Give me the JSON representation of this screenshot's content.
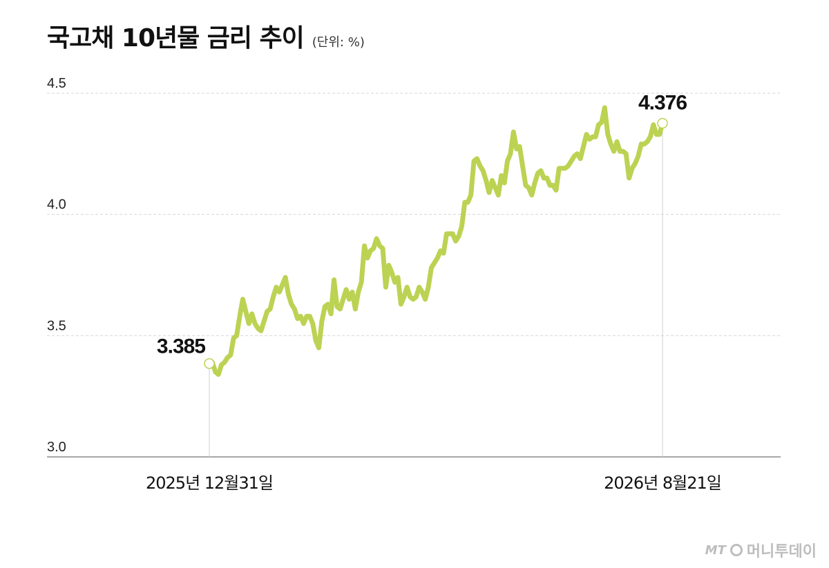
{
  "header": {
    "title": "국고채 10년물 금리 추이",
    "unit": "(단위: %)"
  },
  "logo": {
    "mark": "MT",
    "text": "머니투데이"
  },
  "colors": {
    "line": "#bcd253",
    "grid": "#d6d6d6",
    "axis": "#8a8a8a",
    "marker_fill": "#ffffff"
  },
  "chart_data": {
    "type": "line",
    "title": "국고채 10년물 금리 추이",
    "ylabel": "",
    "xlabel": "",
    "ylim": [
      3.0,
      4.5
    ],
    "yticks": [
      "4.5",
      "4.0",
      "3.5",
      "3.0"
    ],
    "grid": true,
    "start_label": "2025년 12월31일",
    "end_label": "2026년 8월21일",
    "start_value": "3.385",
    "end_value": "4.376",
    "values": [
      3.385,
      3.39,
      3.35,
      3.34,
      3.38,
      3.39,
      3.41,
      3.42,
      3.49,
      3.5,
      3.58,
      3.65,
      3.6,
      3.55,
      3.59,
      3.55,
      3.53,
      3.52,
      3.56,
      3.6,
      3.61,
      3.66,
      3.7,
      3.68,
      3.71,
      3.74,
      3.67,
      3.63,
      3.61,
      3.57,
      3.58,
      3.55,
      3.58,
      3.58,
      3.55,
      3.48,
      3.45,
      3.56,
      3.62,
      3.63,
      3.59,
      3.73,
      3.62,
      3.61,
      3.65,
      3.69,
      3.65,
      3.68,
      3.61,
      3.68,
      3.72,
      3.87,
      3.82,
      3.85,
      3.86,
      3.9,
      3.87,
      3.86,
      3.7,
      3.79,
      3.76,
      3.72,
      3.74,
      3.63,
      3.66,
      3.7,
      3.66,
      3.65,
      3.66,
      3.7,
      3.68,
      3.65,
      3.7,
      3.78,
      3.8,
      3.82,
      3.85,
      3.84,
      3.92,
      3.92,
      3.92,
      3.89,
      3.91,
      3.95,
      4.05,
      4.05,
      4.08,
      4.22,
      4.23,
      4.2,
      4.18,
      4.14,
      4.09,
      4.14,
      4.11,
      4.08,
      4.16,
      4.13,
      4.22,
      4.25,
      4.34,
      4.27,
      4.28,
      4.2,
      4.12,
      4.11,
      4.08,
      4.13,
      4.17,
      4.18,
      4.15,
      4.15,
      4.12,
      4.12,
      4.1,
      4.19,
      4.19,
      4.19,
      4.2,
      4.22,
      4.24,
      4.25,
      4.23,
      4.28,
      4.33,
      4.31,
      4.32,
      4.32,
      4.37,
      4.38,
      4.44,
      4.33,
      4.29,
      4.26,
      4.3,
      4.26,
      4.26,
      4.25,
      4.15,
      4.19,
      4.21,
      4.24,
      4.29,
      4.29,
      4.3,
      4.32,
      4.37,
      4.33,
      4.33,
      4.376
    ]
  }
}
